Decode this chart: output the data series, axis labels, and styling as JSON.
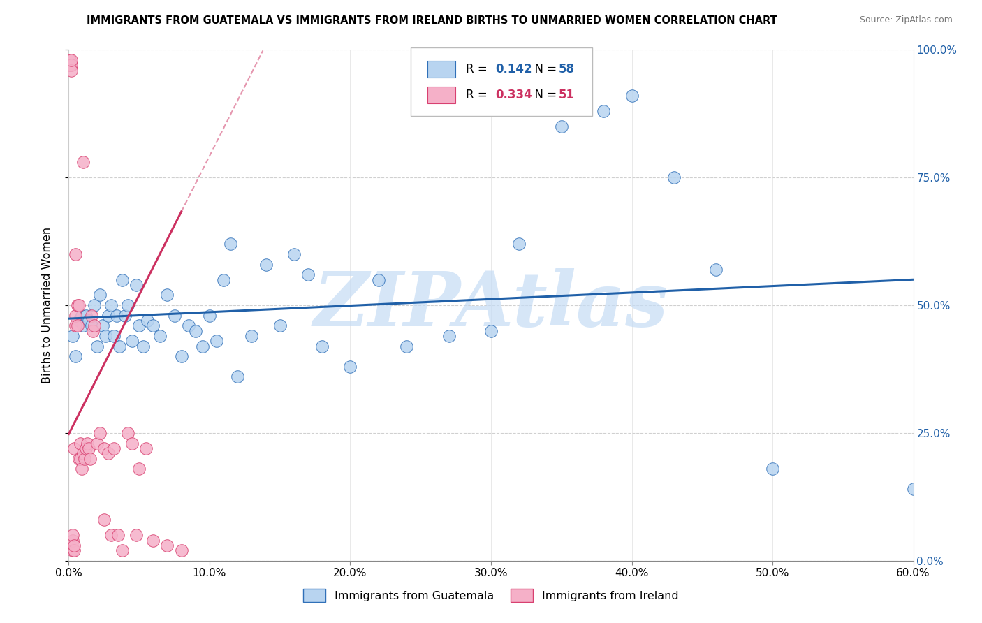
{
  "title": "IMMIGRANTS FROM GUATEMALA VS IMMIGRANTS FROM IRELAND BIRTHS TO UNMARRIED WOMEN CORRELATION CHART",
  "source": "Source: ZipAtlas.com",
  "ylabel": "Births to Unmarried Women",
  "ytick_labels": [
    "0.0%",
    "25.0%",
    "50.0%",
    "75.0%",
    "100.0%"
  ],
  "xtick_vals": [
    0.0,
    0.1,
    0.2,
    0.3,
    0.4,
    0.5,
    0.6
  ],
  "xtick_labels": [
    "0.0%",
    "10.0%",
    "20.0%",
    "30.0%",
    "40.0%",
    "50.0%",
    "60.0%"
  ],
  "legend_r1": "0.142",
  "legend_n1": "58",
  "legend_r2": "0.334",
  "legend_n2": "51",
  "legend_label1": "Immigrants from Guatemala",
  "legend_label2": "Immigrants from Ireland",
  "color_blue_fill": "#b8d4f0",
  "color_blue_edge": "#3070b8",
  "color_pink_fill": "#f5b0c8",
  "color_pink_edge": "#d84070",
  "color_trendline_blue": "#2060a8",
  "color_trendline_pink": "#cc3060",
  "watermark": "ZIPAtlas",
  "watermark_color": "#c5dcf5",
  "guat_x": [
    0.003,
    0.005,
    0.007,
    0.009,
    0.01,
    0.012,
    0.014,
    0.016,
    0.018,
    0.02,
    0.022,
    0.024,
    0.026,
    0.028,
    0.03,
    0.032,
    0.034,
    0.036,
    0.038,
    0.04,
    0.042,
    0.045,
    0.048,
    0.05,
    0.053,
    0.056,
    0.06,
    0.065,
    0.07,
    0.075,
    0.08,
    0.085,
    0.09,
    0.095,
    0.1,
    0.105,
    0.11,
    0.115,
    0.12,
    0.13,
    0.14,
    0.15,
    0.16,
    0.17,
    0.18,
    0.2,
    0.22,
    0.24,
    0.27,
    0.3,
    0.32,
    0.35,
    0.38,
    0.4,
    0.43,
    0.46,
    0.5,
    0.6
  ],
  "guat_y": [
    0.44,
    0.4,
    0.47,
    0.48,
    0.46,
    0.48,
    0.47,
    0.46,
    0.5,
    0.42,
    0.52,
    0.46,
    0.44,
    0.48,
    0.5,
    0.44,
    0.48,
    0.42,
    0.55,
    0.48,
    0.5,
    0.43,
    0.54,
    0.46,
    0.42,
    0.47,
    0.46,
    0.44,
    0.52,
    0.48,
    0.4,
    0.46,
    0.45,
    0.42,
    0.48,
    0.43,
    0.55,
    0.62,
    0.36,
    0.44,
    0.58,
    0.46,
    0.6,
    0.56,
    0.42,
    0.38,
    0.55,
    0.42,
    0.44,
    0.45,
    0.62,
    0.85,
    0.88,
    0.91,
    0.75,
    0.57,
    0.18,
    0.14
  ],
  "ire_x": [
    0.001,
    0.001,
    0.001,
    0.001,
    0.002,
    0.002,
    0.002,
    0.002,
    0.003,
    0.003,
    0.003,
    0.004,
    0.004,
    0.004,
    0.005,
    0.005,
    0.005,
    0.006,
    0.006,
    0.007,
    0.007,
    0.008,
    0.008,
    0.009,
    0.01,
    0.01,
    0.011,
    0.012,
    0.013,
    0.014,
    0.015,
    0.016,
    0.017,
    0.018,
    0.02,
    0.022,
    0.025,
    0.025,
    0.028,
    0.03,
    0.032,
    0.035,
    0.038,
    0.042,
    0.045,
    0.048,
    0.05,
    0.055,
    0.06,
    0.07,
    0.08
  ],
  "ire_y": [
    0.97,
    0.97,
    0.97,
    0.98,
    0.97,
    0.97,
    0.96,
    0.98,
    0.02,
    0.04,
    0.05,
    0.02,
    0.03,
    0.22,
    0.6,
    0.46,
    0.48,
    0.46,
    0.5,
    0.5,
    0.2,
    0.23,
    0.2,
    0.18,
    0.21,
    0.78,
    0.2,
    0.22,
    0.23,
    0.22,
    0.2,
    0.48,
    0.45,
    0.46,
    0.23,
    0.25,
    0.08,
    0.22,
    0.21,
    0.05,
    0.22,
    0.05,
    0.02,
    0.25,
    0.23,
    0.05,
    0.18,
    0.22,
    0.04,
    0.03,
    0.02
  ]
}
